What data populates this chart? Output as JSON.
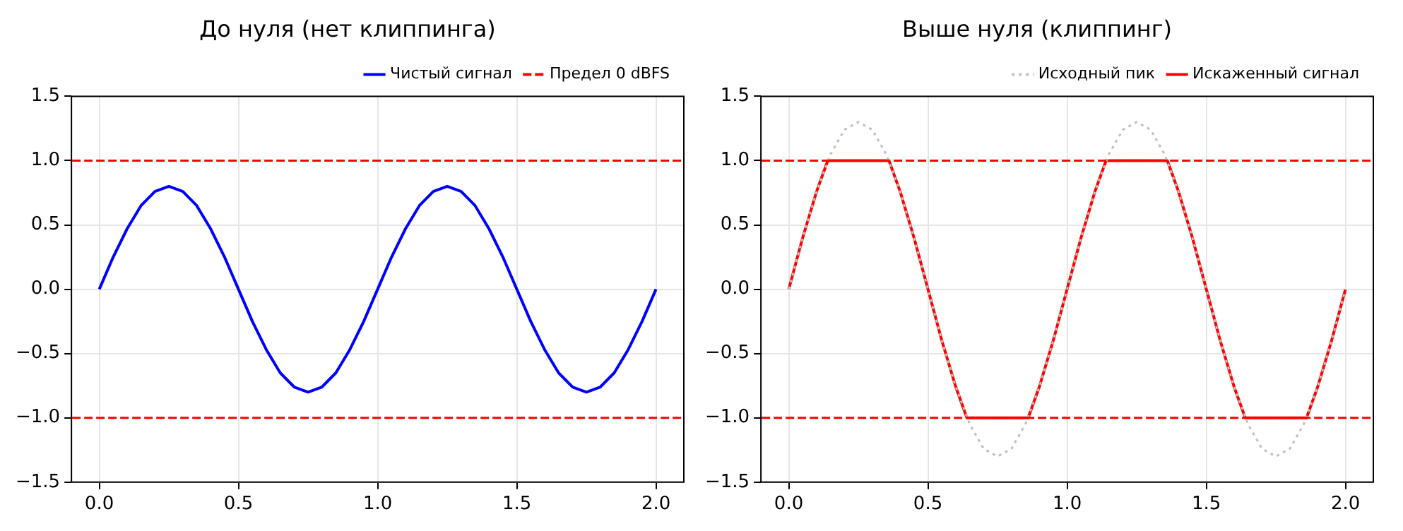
{
  "chart_data": [
    {
      "type": "line",
      "title": "До нуля (нет клиппинга)",
      "x": [
        0,
        0.05,
        0.1,
        0.15,
        0.2,
        0.25,
        0.3,
        0.35,
        0.4,
        0.45,
        0.5,
        0.55,
        0.6,
        0.65,
        0.7,
        0.75,
        0.8,
        0.85,
        0.9,
        0.95,
        1,
        1.05,
        1.1,
        1.15,
        1.2,
        1.25,
        1.3,
        1.35,
        1.4,
        1.45,
        1.5,
        1.55,
        1.6,
        1.65,
        1.7,
        1.75,
        1.8,
        1.85,
        1.9,
        1.95,
        2
      ],
      "series": [
        {
          "name": "Чистый сигнал",
          "color": "#0000ff",
          "line_style": "solid",
          "values": [
            0,
            0.25,
            0.47,
            0.65,
            0.76,
            0.8,
            0.76,
            0.65,
            0.47,
            0.25,
            0,
            -0.25,
            -0.47,
            -0.65,
            -0.76,
            -0.8,
            -0.76,
            -0.65,
            -0.47,
            -0.25,
            0,
            0.25,
            0.47,
            0.65,
            0.76,
            0.8,
            0.76,
            0.65,
            0.47,
            0.25,
            0,
            -0.25,
            -0.47,
            -0.65,
            -0.76,
            -0.8,
            -0.76,
            -0.65,
            -0.47,
            -0.25,
            0
          ]
        }
      ],
      "ref_lines": [
        {
          "axis": "y",
          "value": 1,
          "label": "Предел 0 dBFS",
          "color": "#ff0000",
          "line_style": "dashed"
        },
        {
          "axis": "y",
          "value": -1,
          "color": "#ff0000",
          "line_style": "dashed"
        }
      ],
      "xlim": [
        -0.1,
        2.1
      ],
      "xticks": [
        {
          "value": 0,
          "label": "0.0"
        },
        {
          "value": 0.5,
          "label": "0.5"
        },
        {
          "value": 1,
          "label": "1.0"
        },
        {
          "value": 1.5,
          "label": "1.5"
        },
        {
          "value": 2,
          "label": "2.0"
        }
      ],
      "ylim": [
        -1.5,
        1.5
      ],
      "yticks": [
        {
          "value": -1.5,
          "label": "−1.5"
        },
        {
          "value": -1,
          "label": "−1.0"
        },
        {
          "value": -0.5,
          "label": "−0.5"
        },
        {
          "value": 0,
          "label": "0.0"
        },
        {
          "value": 0.5,
          "label": "0.5"
        },
        {
          "value": 1,
          "label": "1.0"
        },
        {
          "value": 1.5,
          "label": "1.5"
        }
      ],
      "grid": true,
      "legend": "top right",
      "marker": "none"
    },
    {
      "type": "line",
      "title": "Выше нуля (клиппинг)",
      "series": [
        {
          "name": "Исходный пик",
          "color": "#c0c0c0",
          "line_style": "dotted",
          "x": [
            0,
            0.05,
            0.1,
            0.15,
            0.2,
            0.25,
            0.3,
            0.35,
            0.4,
            0.45,
            0.5,
            0.55,
            0.6,
            0.65,
            0.7,
            0.75,
            0.8,
            0.85,
            0.9,
            0.95,
            1,
            1.05,
            1.1,
            1.15,
            1.2,
            1.25,
            1.3,
            1.35,
            1.4,
            1.45,
            1.5,
            1.55,
            1.6,
            1.65,
            1.7,
            1.75,
            1.8,
            1.85,
            1.9,
            1.95,
            2
          ],
          "values": [
            0,
            0.4,
            0.76,
            1.05,
            1.24,
            1.3,
            1.24,
            1.05,
            0.76,
            0.4,
            0,
            -0.4,
            -0.76,
            -1.05,
            -1.24,
            -1.3,
            -1.24,
            -1.05,
            -0.76,
            -0.4,
            0,
            0.4,
            0.76,
            1.05,
            1.24,
            1.3,
            1.24,
            1.05,
            0.76,
            0.4,
            0,
            -0.4,
            -0.76,
            -1.05,
            -1.24,
            -1.3,
            -1.24,
            -1.05,
            -0.76,
            -0.4,
            0
          ]
        },
        {
          "name": "Искаженный сигнал",
          "color": "#ff0000",
          "line_style": "solid",
          "x": [
            0,
            0.05,
            0.1,
            0.14,
            0.36,
            0.4,
            0.45,
            0.5,
            0.55,
            0.6,
            0.64,
            0.86,
            0.9,
            0.95,
            1,
            1.05,
            1.1,
            1.14,
            1.36,
            1.4,
            1.45,
            1.5,
            1.55,
            1.6,
            1.64,
            1.86,
            1.9,
            1.95,
            2
          ],
          "values": [
            0,
            0.4,
            0.76,
            1,
            1,
            0.76,
            0.4,
            0,
            -0.4,
            -0.76,
            -1,
            -1,
            -0.76,
            -0.4,
            0,
            0.4,
            0.76,
            1,
            1,
            0.76,
            0.4,
            0,
            -0.4,
            -0.76,
            -1,
            -1,
            -0.76,
            -0.4,
            0
          ]
        }
      ],
      "ref_lines": [
        {
          "axis": "y",
          "value": 1,
          "color": "#ff0000",
          "line_style": "dashed"
        },
        {
          "axis": "y",
          "value": -1,
          "color": "#ff0000",
          "line_style": "dashed"
        }
      ],
      "xlim": [
        -0.1,
        2.1
      ],
      "xticks": [
        {
          "value": 0,
          "label": "0.0"
        },
        {
          "value": 0.5,
          "label": "0.5"
        },
        {
          "value": 1,
          "label": "1.0"
        },
        {
          "value": 1.5,
          "label": "1.5"
        },
        {
          "value": 2,
          "label": "2.0"
        }
      ],
      "ylim": [
        -1.5,
        1.5
      ],
      "yticks": [
        {
          "value": -1.5,
          "label": "−1.5"
        },
        {
          "value": -1,
          "label": "−1.0"
        },
        {
          "value": -0.5,
          "label": "−0.5"
        },
        {
          "value": 0,
          "label": "0.0"
        },
        {
          "value": 0.5,
          "label": "0.5"
        },
        {
          "value": 1,
          "label": "1.0"
        },
        {
          "value": 1.5,
          "label": "1.5"
        }
      ],
      "grid": true,
      "legend": "top right",
      "marker": "none"
    }
  ]
}
